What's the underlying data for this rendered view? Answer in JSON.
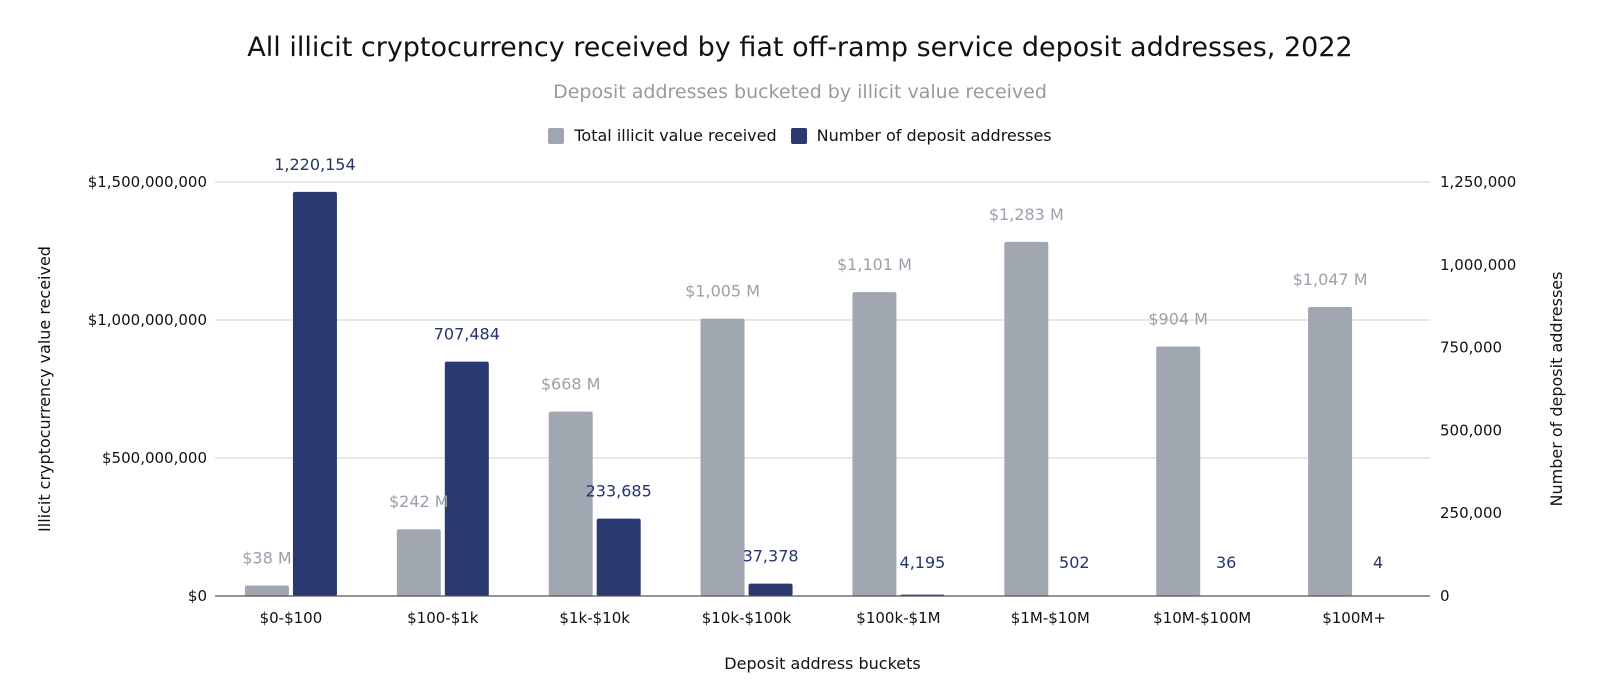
{
  "chart_data": {
    "type": "bar",
    "title": "All illicit cryptocurrency received by fiat off-ramp service deposit addresses, 2022",
    "subtitle": "Deposit addresses bucketed by illicit value received",
    "xlabel": "Deposit address buckets",
    "ylabel_left": "Illicit cryptocurrency value received",
    "ylabel_right": "Number of deposit addresses",
    "categories": [
      "$0-$100",
      "$100-$1k",
      "$1k-$10k",
      "$10k-$100k",
      "$100k-$1M",
      "$1M-$10M",
      "$10M-$100M",
      "$100M+"
    ],
    "series": [
      {
        "name": "Total illicit value received",
        "axis": "left",
        "color": "#a0a7b1",
        "values": [
          38000000,
          242000000,
          668000000,
          1005000000,
          1101000000,
          1283000000,
          904000000,
          1047000000
        ],
        "labels": [
          "$38 M",
          "$242 M",
          "$668 M",
          "$1,005 M",
          "$1,101 M",
          "$1,283 M",
          "$904 M",
          "$1,047 M"
        ]
      },
      {
        "name": "Number of deposit addresses",
        "axis": "right",
        "color": "#2a3970",
        "values": [
          1220154,
          707484,
          233685,
          37378,
          4195,
          502,
          36,
          4
        ],
        "labels": [
          "1,220,154",
          "707,484",
          "233,685",
          "37,378",
          "4,195",
          "502",
          "36",
          "4"
        ]
      }
    ],
    "ylim_left": [
      0,
      1500000000
    ],
    "ylim_right": [
      0,
      1250000
    ],
    "yticks_left": [
      "$0",
      "$500,000,000",
      "$1,000,000,000",
      "$1,500,000,000"
    ],
    "yticks_right": [
      "0",
      "250,000",
      "500,000",
      "750,000",
      "1,000,000",
      "1,250,000"
    ],
    "grid": true,
    "legend_position": "top-center"
  }
}
